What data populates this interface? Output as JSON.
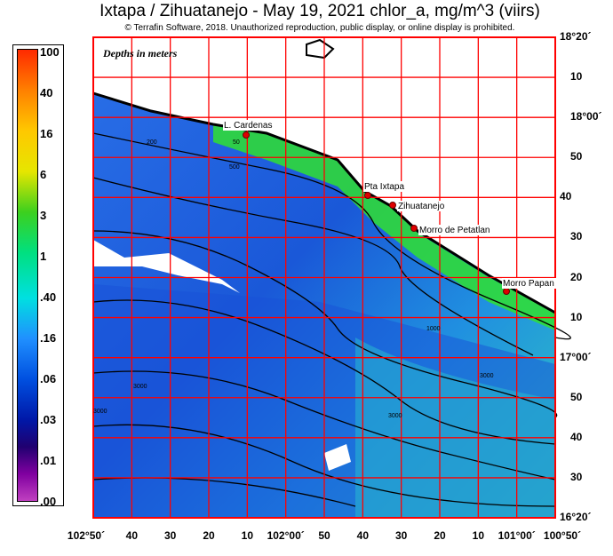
{
  "title": "Ixtapa / Zihuatanejo - May 19, 2021  chlor_a, mg/m^3 (viirs)",
  "copyright": "© Terrafin Software,  2018.  Unauthorized reproduction, public display, or online display is prohibited.",
  "depth_note": "Depths in meters",
  "legend": {
    "labels": [
      "100",
      "40",
      "16",
      "6",
      "3",
      "1",
      ".40",
      ".16",
      ".06",
      ".03",
      ".01",
      ".00"
    ]
  },
  "lat_labels": [
    "18°20´",
    "10",
    "18°00´",
    "50",
    "40",
    "30",
    "20",
    "10",
    "17°00´",
    "50",
    "40",
    "30",
    "16°20´"
  ],
  "lon_labels": [
    "102°50´",
    "40",
    "30",
    "20",
    "10",
    "102°00´",
    "50",
    "40",
    "30",
    "20",
    "10",
    "101°00´",
    "100°50´"
  ],
  "places": [
    {
      "name": "L. Cardenas"
    },
    {
      "name": "Pta Ixtapa"
    },
    {
      "name": "Zihuatanejo"
    },
    {
      "name": "Morro de Petatlan"
    },
    {
      "name": "Morro Papan"
    }
  ],
  "contour_labels": [
    "50",
    "200",
    "500",
    "1000",
    "3000",
    "3000",
    "3000",
    "3000"
  ],
  "colors": {
    "grid": "#ff0000",
    "land": "#ffffff",
    "ocean_low": "#1a5fe0",
    "ocean_mid": "#20b0d8",
    "coastal_high": "#30e020",
    "marker": "#e00000"
  }
}
